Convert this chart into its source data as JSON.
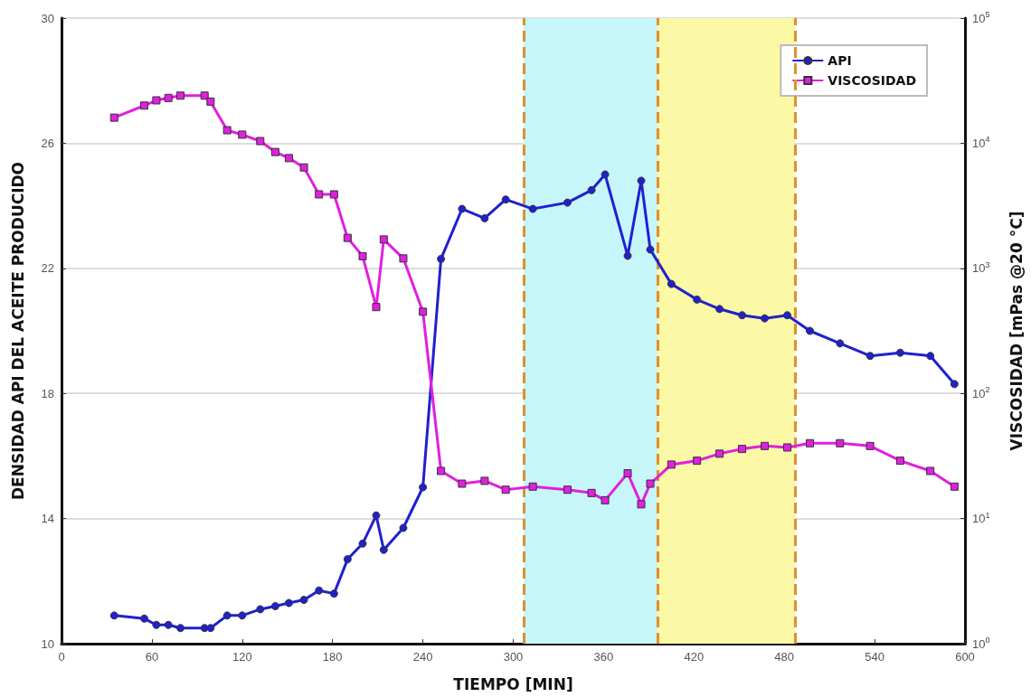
{
  "chart_data": {
    "type": "line",
    "xlabel": "TIEMPO [MIN]",
    "ylabel": "DENSIDAD API DEL ACEITE PRODUCIDO",
    "y2label": "VISCOSIDAD [mPas @20 °C]",
    "x": [
      35,
      55,
      63,
      71,
      79,
      95,
      99,
      110,
      120,
      132,
      142,
      151,
      161,
      171,
      181,
      190,
      200,
      209,
      214,
      227,
      240,
      252,
      266,
      281,
      295,
      313,
      336,
      352,
      361,
      376,
      385,
      391,
      405,
      422,
      437,
      452,
      467,
      482,
      497,
      517,
      537,
      557,
      577,
      593
    ],
    "series": [
      {
        "name": "API",
        "color": "#2020d0",
        "marker": "circle",
        "values": [
          10.9,
          10.8,
          10.6,
          10.6,
          10.5,
          10.5,
          10.5,
          10.9,
          10.9,
          11.1,
          11.2,
          11.3,
          11.4,
          11.7,
          11.6,
          12.7,
          13.2,
          14.1,
          13.0,
          13.7,
          15.0,
          22.3,
          23.9,
          23.6,
          24.2,
          23.9,
          24.1,
          24.5,
          25.0,
          22.4,
          24.8,
          22.6,
          21.5,
          21.0,
          20.7,
          20.5,
          20.4,
          20.5,
          20.0,
          19.6,
          19.2,
          19.3,
          19.2,
          18.3
        ]
      },
      {
        "name": "VISCOSIDAD",
        "color": "#e020e0",
        "marker": "square",
        "axis": "y2",
        "values": [
          16000,
          20000,
          22000,
          23000,
          24000,
          24000,
          21500,
          12700,
          11700,
          10400,
          8500,
          7600,
          6400,
          3900,
          3900,
          1750,
          1250,
          490,
          1700,
          1200,
          450,
          24,
          19,
          20,
          17,
          18,
          17,
          16,
          14,
          23,
          13,
          19,
          27,
          29,
          33,
          36,
          38,
          37,
          40,
          40,
          38,
          29,
          24,
          18
        ]
      }
    ],
    "xlim": [
      0,
      600
    ],
    "xticks": [
      0,
      60,
      120,
      180,
      240,
      300,
      360,
      420,
      480,
      540,
      600
    ],
    "ylim": [
      10,
      30
    ],
    "yticks": [
      10,
      14,
      18,
      22,
      26,
      30
    ],
    "y2lim": [
      1,
      100000
    ],
    "y2ticks": [
      {
        "value": 1,
        "label": "10$^{0}$"
      },
      {
        "value": 10,
        "label": "10$^{1}$"
      },
      {
        "value": 100,
        "label": "10$^{2}$"
      },
      {
        "value": 1000,
        "label": "10$^{3}$"
      },
      {
        "value": 10000,
        "label": "10$^{4}$"
      },
      {
        "value": 100000,
        "label": "10$^{5}$"
      }
    ],
    "log": "y2",
    "grid": "y",
    "legend": "top right",
    "line_style": "solid",
    "bands": [
      {
        "axis": "x",
        "from": 307,
        "to": 396,
        "color": "#c6f6fa"
      },
      {
        "axis": "x",
        "from": 396,
        "to": 487,
        "color": "#fbf8a6"
      }
    ],
    "ref_lines": [
      {
        "axis": "x",
        "value": 307,
        "color": "#e0902a",
        "line_style": "dashed"
      },
      {
        "axis": "x",
        "value": 396,
        "color": "#e0902a",
        "line_style": "dashed"
      },
      {
        "axis": "x",
        "value": 487,
        "color": "#e0902a",
        "line_style": "dashed"
      }
    ]
  }
}
